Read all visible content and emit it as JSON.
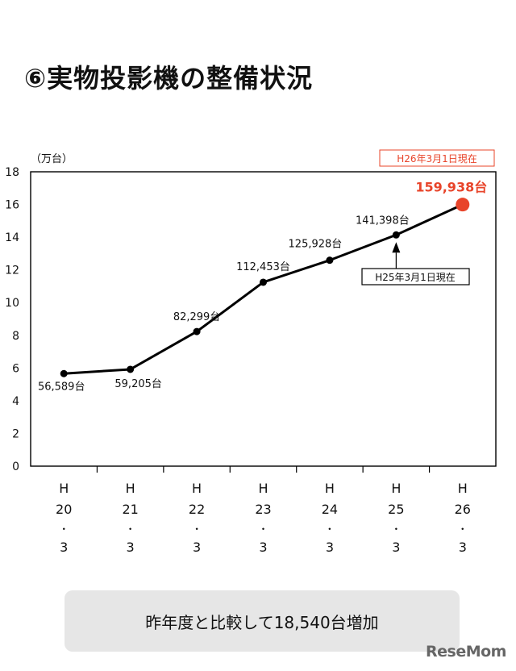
{
  "page_title": "⑥実物投影機の整備状況",
  "summary": "昨年度と比較して18,540台増加",
  "logo": "ReseMom",
  "chart_data": {
    "type": "line",
    "unit_label": "（万台）",
    "categories": [
      [
        "H",
        "20",
        "・",
        "3"
      ],
      [
        "H",
        "21",
        "・",
        "3"
      ],
      [
        "H",
        "22",
        "・",
        "3"
      ],
      [
        "H",
        "23",
        "・",
        "3"
      ],
      [
        "H",
        "24",
        "・",
        "3"
      ],
      [
        "H",
        "25",
        "・",
        "3"
      ],
      [
        "H",
        "26",
        "・",
        "3"
      ]
    ],
    "values": [
      5.6589,
      5.9205,
      8.2299,
      11.2453,
      12.5928,
      14.1398,
      15.9938
    ],
    "point_labels": [
      "56,589台",
      "59,205台",
      "82,299台",
      "112,453台",
      "125,928台",
      "141,398台",
      "159,938台"
    ],
    "ylim": [
      0,
      18
    ],
    "yticks": [
      0,
      2,
      4,
      6,
      8,
      10,
      12,
      14,
      16,
      18
    ],
    "grid": false,
    "colors": {
      "line": "#000000",
      "highlight": "#e8442a",
      "badge_text": "#e8442a"
    },
    "annotations": {
      "current_badge": "H26年3月1日現在",
      "previous_callout": "H25年3月1日現在"
    }
  }
}
